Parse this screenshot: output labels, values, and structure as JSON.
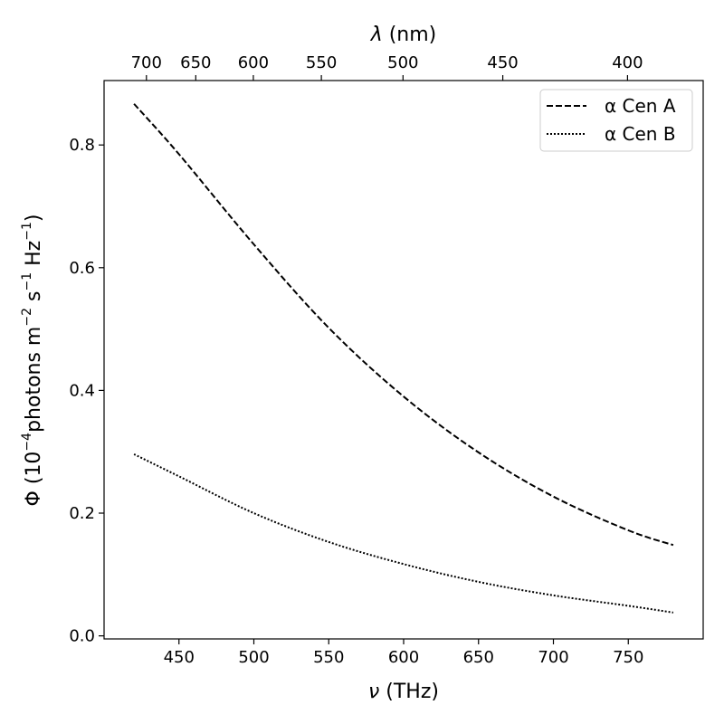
{
  "chart_data": {
    "type": "line",
    "title": "",
    "xlabel": {
      "main": "ν",
      "rest": " (THz)"
    },
    "top_xlabel": {
      "main": "λ",
      "rest": " (nm)"
    },
    "ylabel": {
      "pre": "Φ (10",
      "sup1": "−4",
      "mid1": "photons m",
      "sup2": "−2",
      "mid2": " s",
      "sup3": "−1",
      "mid3": " Hz",
      "sup4": "−1",
      "post": ")"
    },
    "xlim": [
      400,
      800
    ],
    "ylim": [
      -0.005,
      0.905
    ],
    "x_ticks": [
      "450",
      "500",
      "550",
      "600",
      "650",
      "700",
      "750"
    ],
    "y_ticks": [
      "0.0",
      "0.2",
      "0.4",
      "0.6",
      "0.8"
    ],
    "top_ticks": [
      "700",
      "650",
      "600",
      "550",
      "500",
      "450",
      "400"
    ],
    "grid": false,
    "legend_position": "top-right",
    "series": [
      {
        "name": "α Cen A",
        "style": "dashed",
        "color": "#000000",
        "x": [
          420,
          450,
          500,
          550,
          600,
          650,
          700,
          750,
          780
        ],
        "y": [
          0.867,
          0.785,
          0.638,
          0.502,
          0.39,
          0.299,
          0.227,
          0.172,
          0.148
        ]
      },
      {
        "name": "α Cen B",
        "style": "dotted",
        "color": "#000000",
        "x": [
          420,
          450,
          500,
          550,
          600,
          650,
          700,
          750,
          780
        ],
        "y": [
          0.296,
          0.26,
          0.2,
          0.153,
          0.117,
          0.088,
          0.066,
          0.049,
          0.038
        ]
      }
    ]
  }
}
